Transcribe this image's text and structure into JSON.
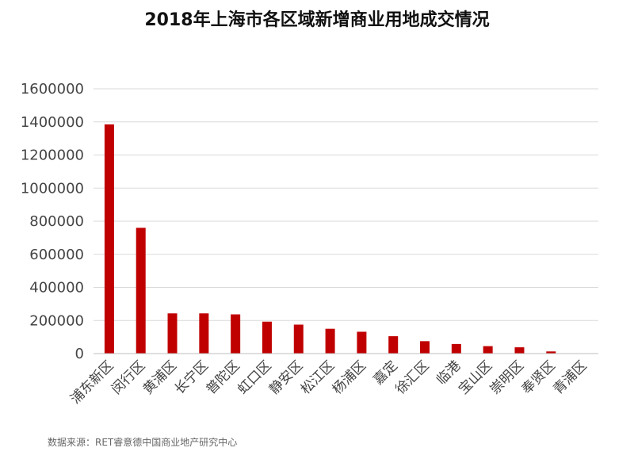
{
  "chart_data": {
    "type": "bar",
    "title": "2018年上海市各区域新增商业用地成交情况",
    "xlabel": "",
    "ylabel": "",
    "ylim": [
      0,
      1600000
    ],
    "yticks": [
      "0",
      "200000",
      "400000",
      "600000",
      "800000",
      "1000000",
      "1200000",
      "1400000",
      "1600000"
    ],
    "categories": [
      "浦东新区",
      "闵行区",
      "黄浦区",
      "长宁区",
      "普陀区",
      "虹口区",
      "静安区",
      "松江区",
      "杨浦区",
      "嘉定",
      "徐汇区",
      "临港",
      "宝山区",
      "崇明区",
      "奉贤区",
      "青浦区"
    ],
    "values": [
      1385000,
      760000,
      243000,
      243000,
      237000,
      193000,
      175000,
      150000,
      132000,
      105000,
      75000,
      58000,
      45000,
      38000,
      13000,
      2000
    ],
    "grid": true,
    "legend": "none",
    "bar_color": "#c00000"
  },
  "source": "数据来源：RET睿意德中国商业地产研究中心"
}
